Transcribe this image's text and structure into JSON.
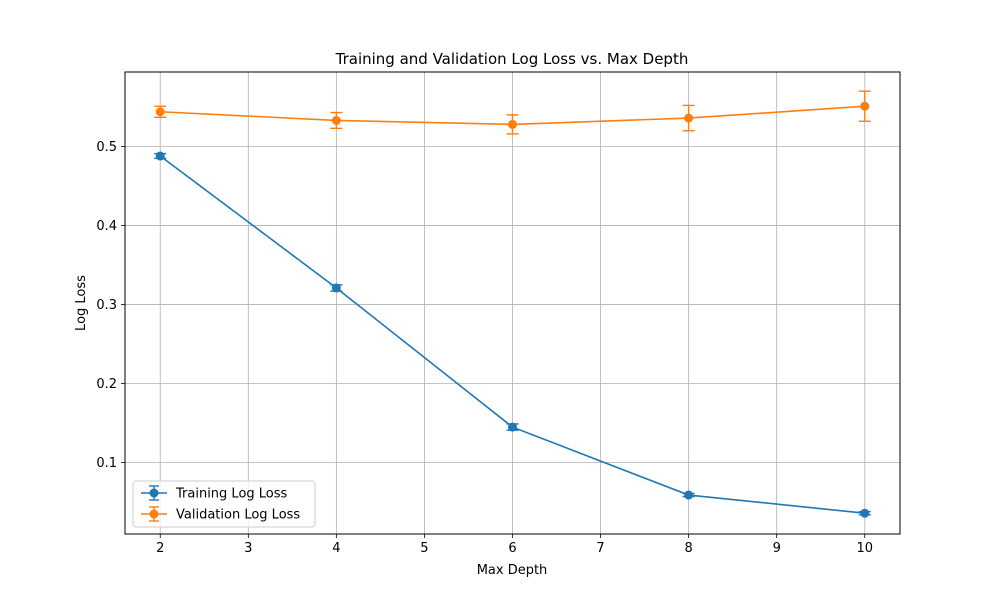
{
  "chart_data": {
    "type": "line",
    "title": "Training and Validation Log Loss vs. Max Depth",
    "xlabel": "Max Depth",
    "ylabel": "Log Loss",
    "x": [
      2,
      4,
      6,
      8,
      10
    ],
    "xlim": [
      1.6,
      10.4
    ],
    "ylim": [
      0.0097,
      0.5943
    ],
    "xticks": [
      "2",
      "3",
      "4",
      "5",
      "6",
      "7",
      "8",
      "9",
      "10"
    ],
    "yticks": [
      "0.1",
      "0.2",
      "0.3",
      "0.4",
      "0.5"
    ],
    "grid": true,
    "legend_position": "lower-left",
    "series": [
      {
        "name": "Training Log Loss",
        "color": "#1f77b4",
        "values": [
          0.488,
          0.321,
          0.145,
          0.059,
          0.036
        ],
        "errors": [
          0.003,
          0.004,
          0.004,
          0.002,
          0.002
        ]
      },
      {
        "name": "Validation Log Loss",
        "color": "#ff7f0e",
        "values": [
          0.544,
          0.533,
          0.528,
          0.536,
          0.551
        ],
        "errors": [
          0.007,
          0.01,
          0.012,
          0.016,
          0.019
        ]
      }
    ]
  }
}
